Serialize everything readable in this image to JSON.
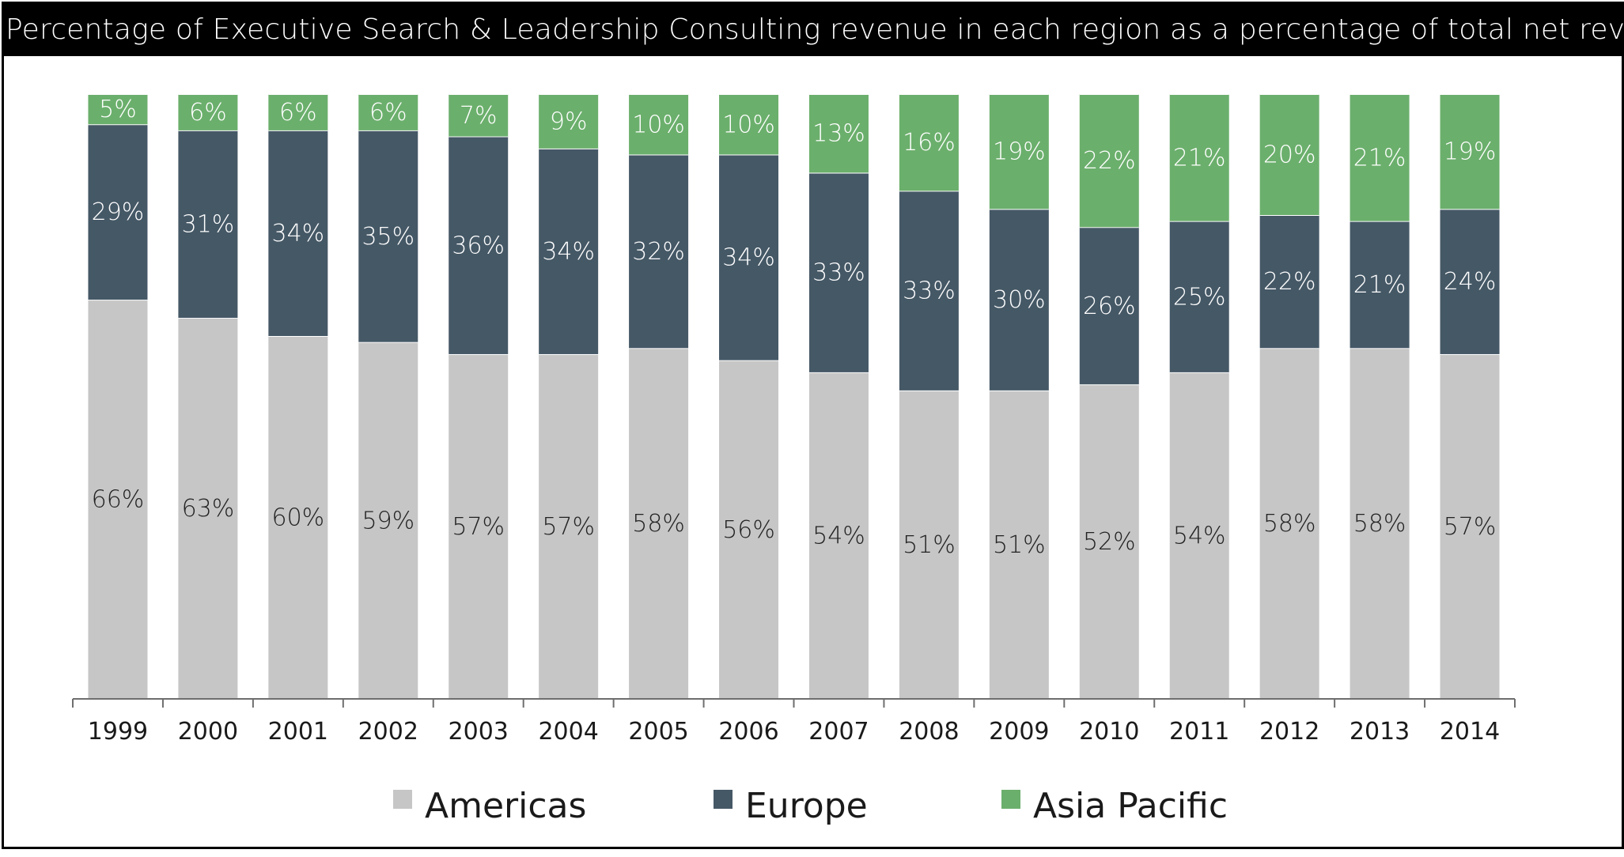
{
  "chart_data": {
    "type": "bar",
    "stacked": true,
    "title": "Percentage of Executive Search & Leadership Consulting revenue in each region as a percentage of total net revenue",
    "categories": [
      "1999",
      "2000",
      "2001",
      "2002",
      "2003",
      "2004",
      "2005",
      "2006",
      "2007",
      "2008",
      "2009",
      "2010",
      "2011",
      "2012",
      "2013",
      "2014"
    ],
    "series": [
      {
        "name": "Americas",
        "color": "#c6c6c6",
        "label_color": "#222222",
        "values": [
          66,
          63,
          60,
          59,
          57,
          57,
          58,
          56,
          54,
          51,
          51,
          52,
          54,
          58,
          58,
          57
        ]
      },
      {
        "name": "Europe",
        "color": "#455866",
        "label_color": "#ffffff",
        "values": [
          29,
          31,
          34,
          35,
          36,
          34,
          32,
          34,
          33,
          33,
          30,
          26,
          25,
          22,
          21,
          24
        ]
      },
      {
        "name": "Asia Pacific",
        "color": "#6baf6c",
        "label_color": "#ffffff",
        "values": [
          5,
          6,
          6,
          6,
          7,
          9,
          10,
          10,
          13,
          16,
          19,
          22,
          21,
          20,
          21,
          19
        ]
      }
    ],
    "value_suffix": "%",
    "ylim": [
      0,
      100
    ],
    "grid": false,
    "legend_position": "bottom"
  }
}
